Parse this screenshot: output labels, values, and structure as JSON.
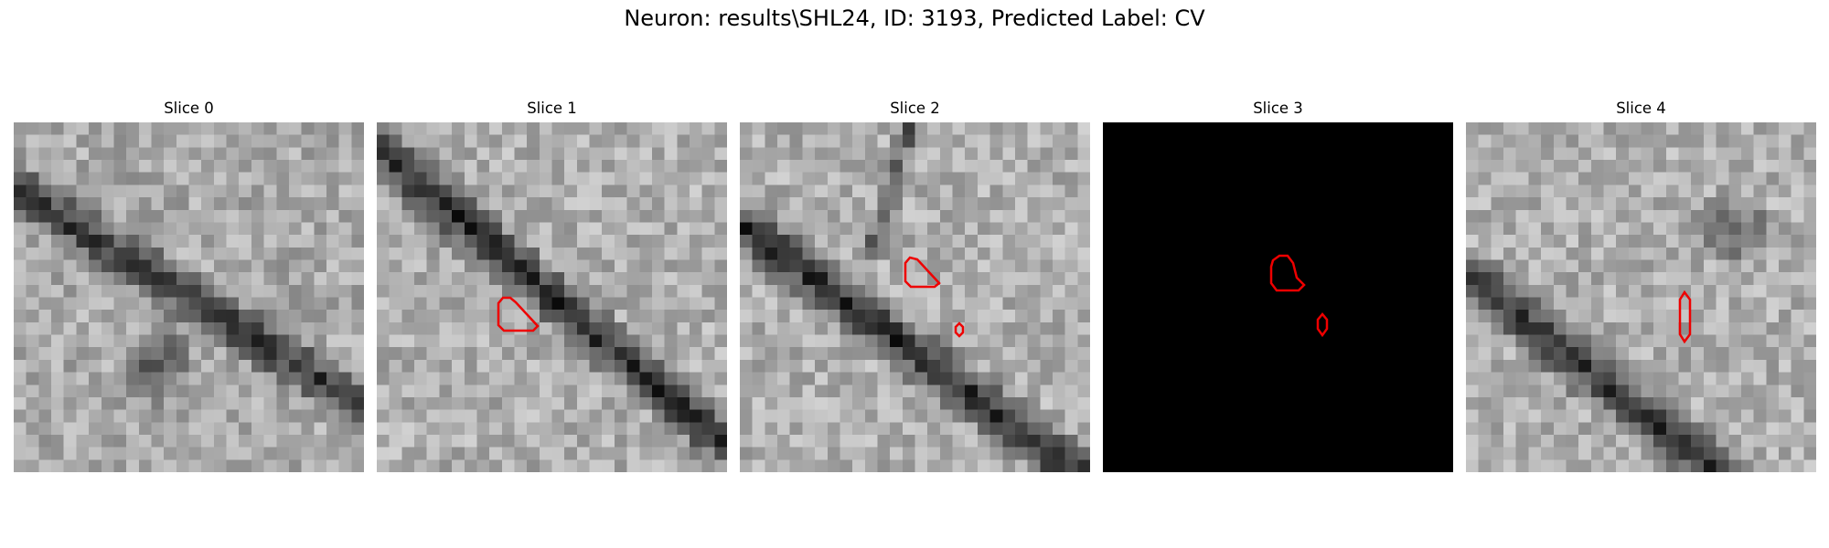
{
  "figure": {
    "title": "Neuron: results\\SHL24, ID: 3193, Predicted Label: CV",
    "contour_color": "#ee0000"
  },
  "slices": [
    {
      "title": "Slice 0",
      "dark": false
    },
    {
      "title": "Slice 1",
      "dark": false
    },
    {
      "title": "Slice 2",
      "dark": false
    },
    {
      "title": "Slice 3",
      "dark": true
    },
    {
      "title": "Slice 4",
      "dark": false
    }
  ]
}
